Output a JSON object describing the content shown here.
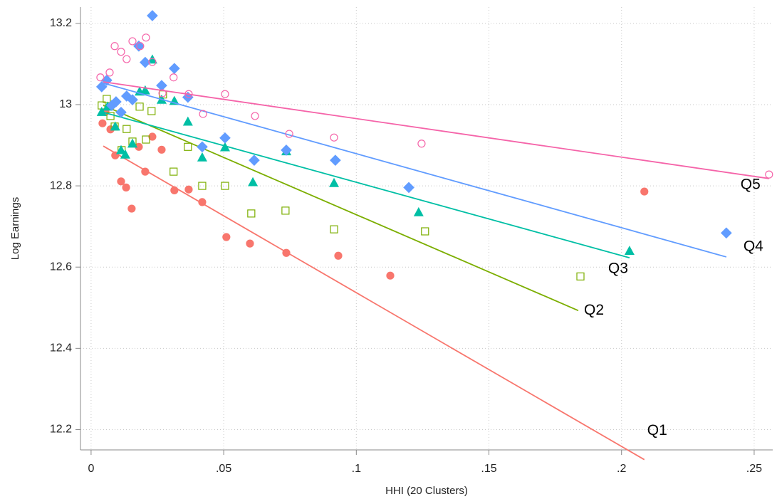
{
  "chart_data": {
    "type": "scatter",
    "x_label": "HHI (20 Clusters)",
    "y_label": "Log Earnings",
    "xlim": [
      -0.004,
      0.257
    ],
    "ylim": [
      12.15,
      13.24
    ],
    "xticks": [
      {
        "value": 0,
        "label": "0"
      },
      {
        "value": 0.05,
        "label": ".05"
      },
      {
        "value": 0.1,
        "label": ".1"
      },
      {
        "value": 0.15,
        "label": ".15"
      },
      {
        "value": 0.2,
        "label": ".2"
      },
      {
        "value": 0.25,
        "label": ".25"
      }
    ],
    "yticks": [
      12.2,
      12.4,
      12.6,
      12.8,
      13,
      13.2
    ],
    "grid": true,
    "series": [
      {
        "name": "Q1",
        "color": "#f8766d",
        "marker": "circle",
        "filled": true,
        "x": [
          0.0043,
          0.0054,
          0.0073,
          0.0091,
          0.0113,
          0.0132,
          0.0153,
          0.018,
          0.0204,
          0.0231,
          0.0266,
          0.0314,
          0.0368,
          0.0419,
          0.051,
          0.0599,
          0.0736,
          0.0932,
          0.1128,
          0.2086
        ],
        "y": [
          12.954,
          12.982,
          12.939,
          12.875,
          12.811,
          12.796,
          12.744,
          12.896,
          12.835,
          12.921,
          12.889,
          12.789,
          12.791,
          12.76,
          12.674,
          12.658,
          12.635,
          12.628,
          12.579,
          12.786
        ],
        "fit": {
          "x": [
            0.0046,
            0.2086
          ],
          "y": [
            12.898,
            12.126
          ]
        }
      },
      {
        "name": "Q2",
        "color": "#7cae00",
        "marker": "square",
        "filled": false,
        "x": [
          0.004,
          0.0059,
          0.0073,
          0.0089,
          0.0115,
          0.0134,
          0.0156,
          0.0183,
          0.0207,
          0.0228,
          0.0271,
          0.0311,
          0.0365,
          0.0419,
          0.0505,
          0.0604,
          0.0733,
          0.0916,
          0.1259,
          0.1845
        ],
        "y": [
          12.998,
          13.014,
          12.972,
          12.946,
          12.888,
          12.94,
          12.909,
          12.995,
          12.914,
          12.984,
          13.025,
          12.835,
          12.896,
          12.8,
          12.8,
          12.732,
          12.739,
          12.693,
          12.688,
          12.577
        ],
        "fit": {
          "x": [
            0.0046,
            0.1837
          ],
          "y": [
            12.998,
            12.493
          ]
        }
      },
      {
        "name": "Q3",
        "color": "#00bfa5",
        "marker": "triangle",
        "filled": true,
        "x": [
          0.004,
          0.0062,
          0.0091,
          0.0113,
          0.0129,
          0.0156,
          0.0183,
          0.0204,
          0.0231,
          0.0266,
          0.0314,
          0.0365,
          0.0419,
          0.0505,
          0.061,
          0.0736,
          0.0916,
          0.1235,
          0.203
        ],
        "y": [
          12.982,
          12.995,
          12.946,
          12.888,
          12.877,
          12.904,
          13.032,
          13.035,
          13.111,
          13.012,
          13.009,
          12.958,
          12.87,
          12.895,
          12.809,
          12.885,
          12.807,
          12.735,
          12.64
        ],
        "fit": {
          "x": [
            0.0046,
            0.203
          ],
          "y": [
            12.981,
            12.623
          ]
        }
      },
      {
        "name": "Q4",
        "color": "#619cff",
        "marker": "diamond",
        "filled": true,
        "x": [
          0.004,
          0.0059,
          0.0078,
          0.0094,
          0.0113,
          0.0134,
          0.0156,
          0.018,
          0.0204,
          0.0231,
          0.0266,
          0.0314,
          0.0365,
          0.0419,
          0.0505,
          0.0615,
          0.0736,
          0.0921,
          0.1198,
          0.2395
        ],
        "y": [
          13.044,
          13.06,
          12.998,
          13.007,
          12.981,
          13.021,
          13.012,
          13.144,
          13.104,
          13.219,
          13.047,
          13.089,
          13.018,
          12.896,
          12.918,
          12.863,
          12.888,
          12.863,
          12.796,
          12.684
        ],
        "fit": {
          "x": [
            0.0046,
            0.2395
          ],
          "y": [
            13.053,
            12.625
          ]
        }
      },
      {
        "name": "Q5",
        "color": "#f564a9",
        "marker": "circle",
        "filled": false,
        "x": [
          0.0035,
          0.007,
          0.0089,
          0.0113,
          0.0134,
          0.0156,
          0.0185,
          0.0207,
          0.0231,
          0.0269,
          0.0311,
          0.0368,
          0.0422,
          0.0505,
          0.0618,
          0.0747,
          0.0916,
          0.1246,
          0.2556
        ],
        "y": [
          13.067,
          13.079,
          13.144,
          13.13,
          13.112,
          13.156,
          13.144,
          13.165,
          13.105,
          13.028,
          13.067,
          13.026,
          12.977,
          13.026,
          12.972,
          12.928,
          12.919,
          12.904,
          12.828
        ],
        "fit": {
          "x": [
            0.0046,
            0.2556
          ],
          "y": [
            13.056,
            12.818
          ]
        }
      }
    ]
  }
}
